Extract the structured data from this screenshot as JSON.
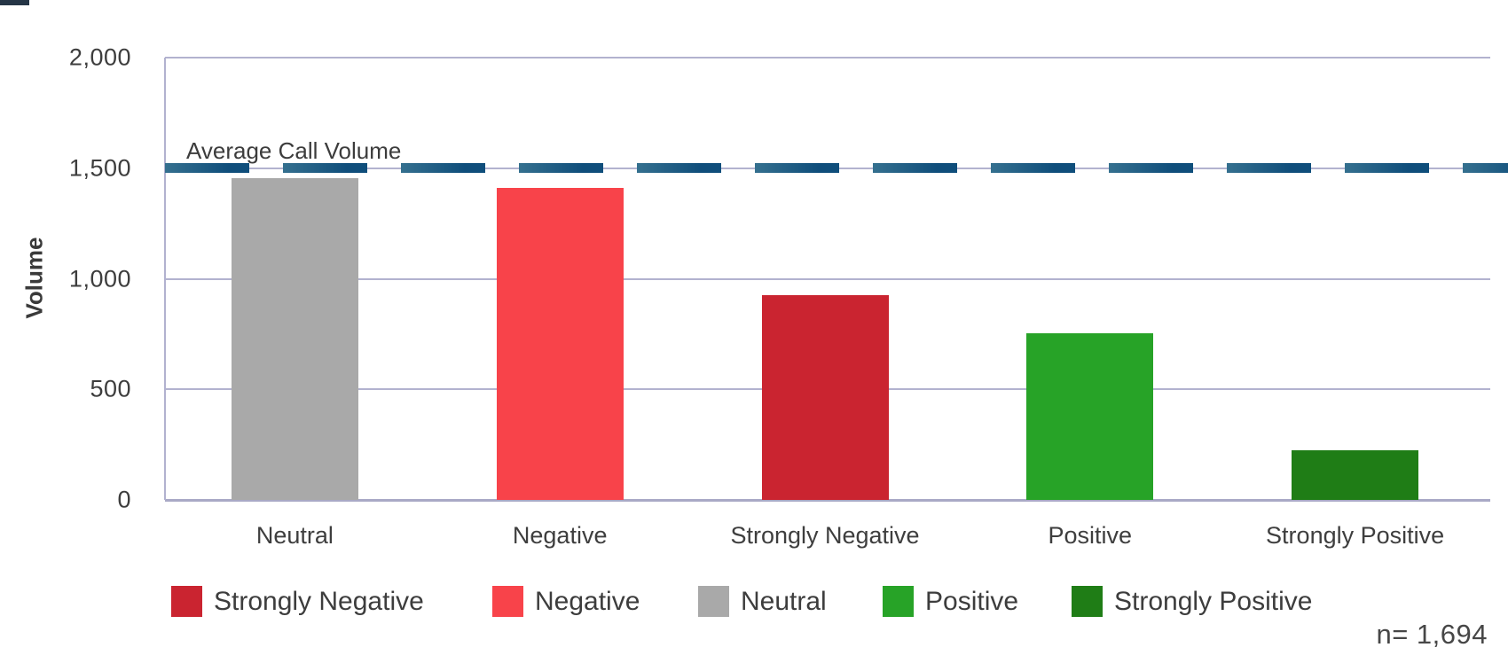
{
  "chart_data": {
    "type": "bar",
    "title": "",
    "categories": [
      "Neutral",
      "Negative",
      "Strongly Negative",
      "Positive",
      "Strongly Positive"
    ],
    "values": [
      1455,
      1410,
      925,
      755,
      225
    ],
    "bar_colors": [
      "#a9a9a9",
      "#f8434a",
      "#ca2430",
      "#27a327",
      "#1f7d16"
    ],
    "xlabel": "",
    "ylabel": "Volume",
    "ylim": [
      0,
      2000
    ],
    "yticks": [
      {
        "value": 0,
        "label": "0"
      },
      {
        "value": 500,
        "label": "500"
      },
      {
        "value": 1000,
        "label": "1,000"
      },
      {
        "value": 1500,
        "label": "1,500"
      },
      {
        "value": 2000,
        "label": "2,000"
      }
    ],
    "grid": "horizontal",
    "reference_line": {
      "value": 1500,
      "label": "Average Call Volume",
      "style": "dashed",
      "color": "#10507c"
    },
    "legend": {
      "position": "bottom",
      "items": [
        {
          "label": "Strongly Negative",
          "color": "#ca2430"
        },
        {
          "label": "Negative",
          "color": "#f8434a"
        },
        {
          "label": "Neutral",
          "color": "#a9a9a9"
        },
        {
          "label": "Positive",
          "color": "#27a327"
        },
        {
          "label": "Strongly Positive",
          "color": "#1f7d16"
        }
      ]
    },
    "annotation": "n= 1,694"
  },
  "colors": {
    "gridline": "#b2b2cf",
    "axis_text": "#3d3d3d",
    "reference_line": "#10507c",
    "background": "#ffffff"
  }
}
